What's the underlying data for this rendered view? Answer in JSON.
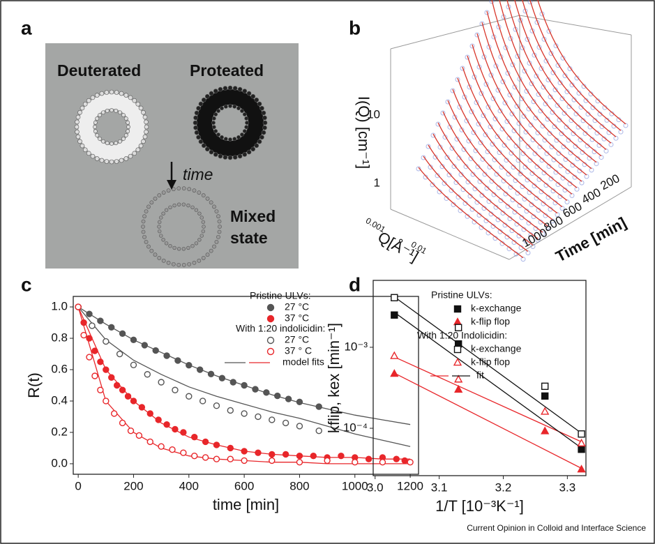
{
  "panel_labels": [
    "a",
    "b",
    "c",
    "d"
  ],
  "diagram": {
    "deuterated": "Deuterated",
    "proteated": "Proteated",
    "time": "time",
    "mixed": [
      "Mixed",
      "state"
    ]
  },
  "panel_b": {
    "y_label": "I(Q) [cm⁻¹]",
    "y_ticks": [
      "10",
      "1"
    ],
    "q_label": "Q[Å⁻¹]",
    "q_ticks": [
      "0.001",
      "0.01"
    ],
    "time_label": "Time [min]",
    "time_ticks": [
      "200",
      "400",
      "600",
      "800",
      "1000"
    ]
  },
  "chart_data": [
    {
      "type": "scatter",
      "x_label": "time [min]",
      "y_label": "R(t)",
      "xlim": [
        -18,
        1230
      ],
      "ylim": [
        -0.067,
        1.067
      ],
      "xticks": [
        0,
        200,
        400,
        600,
        800,
        1000,
        1200
      ],
      "yticks": [
        {
          "value": 0,
          "label": "0.0"
        },
        {
          "value": 0.2,
          "label": "0.2"
        },
        {
          "value": 0.4,
          "label": "0.4"
        },
        {
          "value": 0.6,
          "label": "0.6"
        },
        {
          "value": 0.8,
          "label": "0.8"
        },
        {
          "value": 1,
          "label": "1.0"
        }
      ],
      "groups": [
        {
          "title": "Pristine ULVs:",
          "series": [
            {
              "name": "27 °C",
              "color": "#555555",
              "marker": "circle",
              "filled": true,
              "x": [
                0,
                40,
                80,
                120,
                160,
                200,
                240,
                280,
                320,
                360,
                400,
                440,
                480,
                520,
                560,
                600,
                640,
                680,
                720,
                760,
                800,
                870
              ],
              "values": [
                1,
                0.955,
                0.911,
                0.87,
                0.83,
                0.79,
                0.756,
                0.722,
                0.689,
                0.658,
                0.628,
                0.6,
                0.572,
                0.546,
                0.52,
                0.5,
                0.475,
                0.454,
                0.433,
                0.413,
                0.394,
                0.364
              ]
            },
            {
              "name": "37 °C",
              "color": "#e8262a",
              "marker": "circle",
              "filled": true,
              "x": [
                0,
                20,
                40,
                60,
                80,
                100,
                120,
                140,
                160,
                180,
                200,
                230,
                260,
                290,
                320,
                350,
                380,
                420,
                460,
                500,
                550,
                600,
                650,
                700,
                750,
                800,
                850,
                900,
                950,
                1000,
                1050,
                1100,
                1150,
                1180
              ],
              "values": [
                1,
                0.9,
                0.8,
                0.72,
                0.65,
                0.6,
                0.55,
                0.5,
                0.47,
                0.43,
                0.4,
                0.36,
                0.32,
                0.28,
                0.25,
                0.22,
                0.2,
                0.17,
                0.14,
                0.12,
                0.1,
                0.08,
                0.07,
                0.06,
                0.06,
                0.05,
                0.05,
                0.04,
                0.05,
                0.04,
                0.03,
                0.04,
                0.03,
                0.02
              ]
            }
          ]
        },
        {
          "title": "With 1:20 indolicidin:",
          "series": [
            {
              "name": "27 °C",
              "color": "#555555",
              "marker": "circle",
              "filled": false,
              "x": [
                0,
                50,
                100,
                150,
                200,
                250,
                300,
                350,
                400,
                450,
                500,
                550,
                600,
                650,
                700,
                750,
                800,
                870
              ],
              "values": [
                1,
                0.88,
                0.78,
                0.7,
                0.63,
                0.57,
                0.52,
                0.47,
                0.43,
                0.4,
                0.37,
                0.34,
                0.32,
                0.3,
                0.28,
                0.26,
                0.24,
                0.21
              ]
            },
            {
              "name": "37 ° C",
              "color": "#e8262a",
              "marker": "circle",
              "filled": false,
              "x": [
                0,
                20,
                40,
                60,
                80,
                100,
                130,
                160,
                190,
                220,
                260,
                300,
                340,
                380,
                420,
                460,
                500,
                550,
                600,
                700,
                800,
                900,
                1000,
                1100,
                1200
              ],
              "values": [
                1,
                0.82,
                0.68,
                0.56,
                0.47,
                0.4,
                0.32,
                0.26,
                0.21,
                0.18,
                0.14,
                0.11,
                0.09,
                0.07,
                0.05,
                0.04,
                0.03,
                0.03,
                0.02,
                0.02,
                0.01,
                0.02,
                0.01,
                0.01,
                0.01
              ]
            }
          ]
        }
      ],
      "fits": [
        {
          "color": "#555555",
          "x": [
            0,
            100,
            200,
            300,
            400,
            500,
            600,
            700,
            800,
            900,
            1000,
            1100,
            1200
          ],
          "values": [
            1,
            0.89,
            0.79,
            0.71,
            0.63,
            0.56,
            0.5,
            0.44,
            0.39,
            0.35,
            0.31,
            0.28,
            0.25
          ]
        },
        {
          "color": "#555555",
          "x": [
            0,
            100,
            200,
            300,
            400,
            500,
            600,
            700,
            800,
            900,
            1000,
            1100,
            1200
          ],
          "values": [
            1,
            0.79,
            0.66,
            0.57,
            0.49,
            0.43,
            0.38,
            0.33,
            0.29,
            0.24,
            0.19,
            0.15,
            0.11
          ]
        },
        {
          "color": "#e8262a",
          "x": [
            0,
            100,
            200,
            300,
            400,
            500,
            600,
            700,
            800,
            900,
            1000,
            1100,
            1200
          ],
          "values": [
            1,
            0.6,
            0.4,
            0.26,
            0.17,
            0.12,
            0.08,
            0.06,
            0.05,
            0.04,
            0.04,
            0.03,
            0.03
          ]
        },
        {
          "color": "#e8262a",
          "x": [
            0,
            100,
            200,
            300,
            400,
            500,
            600,
            700,
            800,
            900,
            1000,
            1100,
            1200
          ],
          "values": [
            1,
            0.4,
            0.2,
            0.1,
            0.05,
            0.03,
            0.02,
            0.01,
            0.01,
            0,
            0,
            0,
            0
          ]
        }
      ],
      "fit_label": "model fits"
    },
    {
      "type": "scatter",
      "log_y": true,
      "x_label": "1/T [10⁻³K⁻¹]",
      "y_label": "kflip, kex [min⁻¹]",
      "xlim": [
        2.997,
        3.329
      ],
      "ylim": [
        2.6e-05,
        0.0067
      ],
      "xticks": [
        {
          "value": 3,
          "label": "3.0"
        },
        {
          "value": 3.1,
          "label": "3.1"
        },
        {
          "value": 3.2,
          "label": "3.2"
        },
        {
          "value": 3.3,
          "label": "3.3"
        }
      ],
      "yticks": [
        {
          "value": 0.0001,
          "label": "10⁻⁴"
        },
        {
          "value": 0.001,
          "label": "10⁻³"
        }
      ],
      "groups": [
        {
          "title": "Pristine ULVs:",
          "series": [
            {
              "name": "k-exchange",
              "color": "#111111",
              "marker": "square",
              "filled": true,
              "x": [
                3.03,
                3.13,
                3.265,
                3.322
              ],
              "values": [
                0.0025,
                0.0011,
                0.00025,
                5.5e-05
              ]
            },
            {
              "name": "k-flip flop",
              "color": "#e8262a",
              "marker": "triangle",
              "filled": true,
              "x": [
                3.03,
                3.13,
                3.265,
                3.322
              ],
              "values": [
                0.00047,
                0.0003,
                9.2e-05,
                3.1e-05
              ]
            }
          ]
        },
        {
          "title": "With 1:20 Indolicidin:",
          "series": [
            {
              "name": "k-exchange",
              "color": "#111111",
              "marker": "square",
              "filled": false,
              "x": [
                3.03,
                3.13,
                3.265,
                3.322
              ],
              "values": [
                0.0041,
                0.00175,
                0.00033,
                8.5e-05
              ]
            },
            {
              "name": "k-flip flop",
              "color": "#e8262a",
              "marker": "triangle",
              "filled": false,
              "x": [
                3.03,
                3.13,
                3.265,
                3.322
              ],
              "values": [
                0.00078,
                0.0004,
                0.00016,
                6.5e-05
              ]
            }
          ]
        }
      ],
      "fits": [
        {
          "color": "#e8262a",
          "x": [
            3.03,
            3.322
          ],
          "values": [
            0.00048,
            3.2e-05
          ]
        },
        {
          "color": "#e8262a",
          "x": [
            3.03,
            3.322
          ],
          "values": [
            0.00076,
            6.8e-05
          ]
        },
        {
          "color": "#111111",
          "x": [
            3.03,
            3.322
          ],
          "values": [
            0.0027,
            5.7e-05
          ]
        },
        {
          "color": "#111111",
          "x": [
            3.03,
            3.322
          ],
          "values": [
            0.0042,
            8.7e-05
          ]
        }
      ],
      "fit_label": "fit"
    }
  ],
  "footer": "Current Opinion in Colloid and Interface Science"
}
